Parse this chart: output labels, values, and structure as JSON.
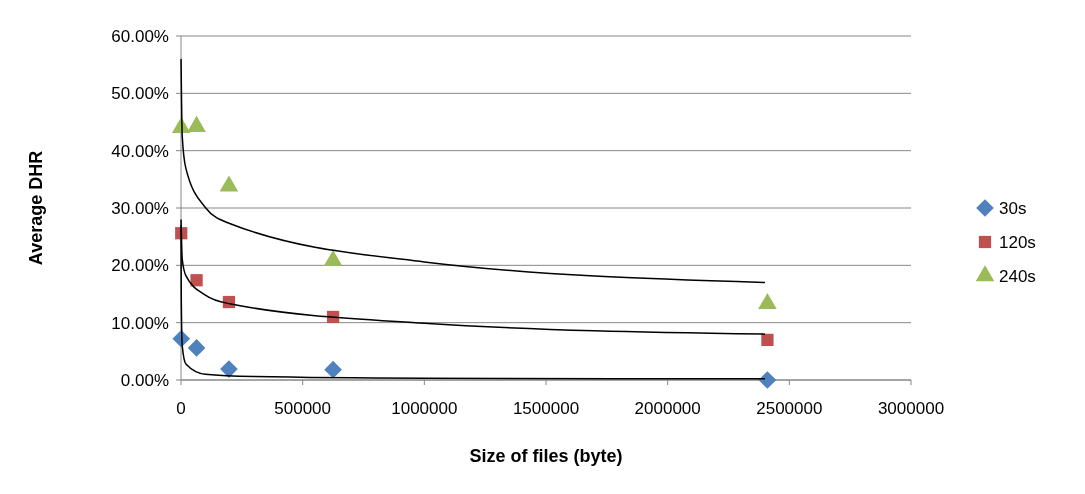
{
  "chart_data": {
    "type": "scatter",
    "xlabel": "Size of files (byte)",
    "ylabel": "Average DHR",
    "xlim": [
      0,
      3000000
    ],
    "xticks": [
      0,
      500000,
      1000000,
      1500000,
      2000000,
      2500000,
      3000000
    ],
    "ylim": [
      0,
      60
    ],
    "yticks": [
      {
        "value": 0,
        "label": "0.00%"
      },
      {
        "value": 10,
        "label": "10.00%"
      },
      {
        "value": 20,
        "label": "20.00%"
      },
      {
        "value": 30,
        "label": "30.00%"
      },
      {
        "value": 40,
        "label": "40.00%"
      },
      {
        "value": 50,
        "label": "50.00%"
      },
      {
        "value": 60,
        "label": "60.00%"
      }
    ],
    "grid": "y",
    "legend": "right",
    "series": [
      {
        "name": "30s",
        "color": "#4f81bd",
        "marker": "diamond",
        "x": [
          1000,
          64000,
          197000,
          625000,
          2410000
        ],
        "values": [
          7.2,
          5.6,
          1.9,
          1.8,
          0
        ]
      },
      {
        "name": "120s",
        "color": "#c0504d",
        "marker": "square",
        "x": [
          1000,
          64000,
          197000,
          625000,
          2410000
        ],
        "values": [
          25.6,
          17.4,
          13.6,
          11.0,
          7.0
        ]
      },
      {
        "name": "240s",
        "color": "#9bbb59",
        "marker": "triangle",
        "x": [
          1000,
          64000,
          197000,
          625000,
          2410000
        ],
        "values": [
          44.0,
          44.2,
          33.8,
          20.8,
          13.3
        ]
      },
      {
        "type": "line",
        "color": "#000000",
        "x": [
          200,
          1000,
          5000,
          20000,
          100000,
          300000,
          1000000,
          2400000
        ],
        "values": [
          27,
          15,
          6,
          2.8,
          1.0,
          0.6,
          0.3,
          0.2
        ]
      },
      {
        "type": "line",
        "color": "#000000",
        "x": [
          200,
          5000,
          20000,
          100000,
          200000,
          1000000,
          2400000
        ],
        "values": [
          28,
          21.1,
          18.2,
          14.8,
          13.3,
          9.9,
          8
        ]
      },
      {
        "type": "line",
        "color": "#000000",
        "x": [
          200,
          5000,
          20000,
          100000,
          200000,
          1000000,
          2400000
        ],
        "values": [
          56,
          42.6,
          36.9,
          30.1,
          27.3,
          20.6,
          17
        ]
      }
    ]
  }
}
